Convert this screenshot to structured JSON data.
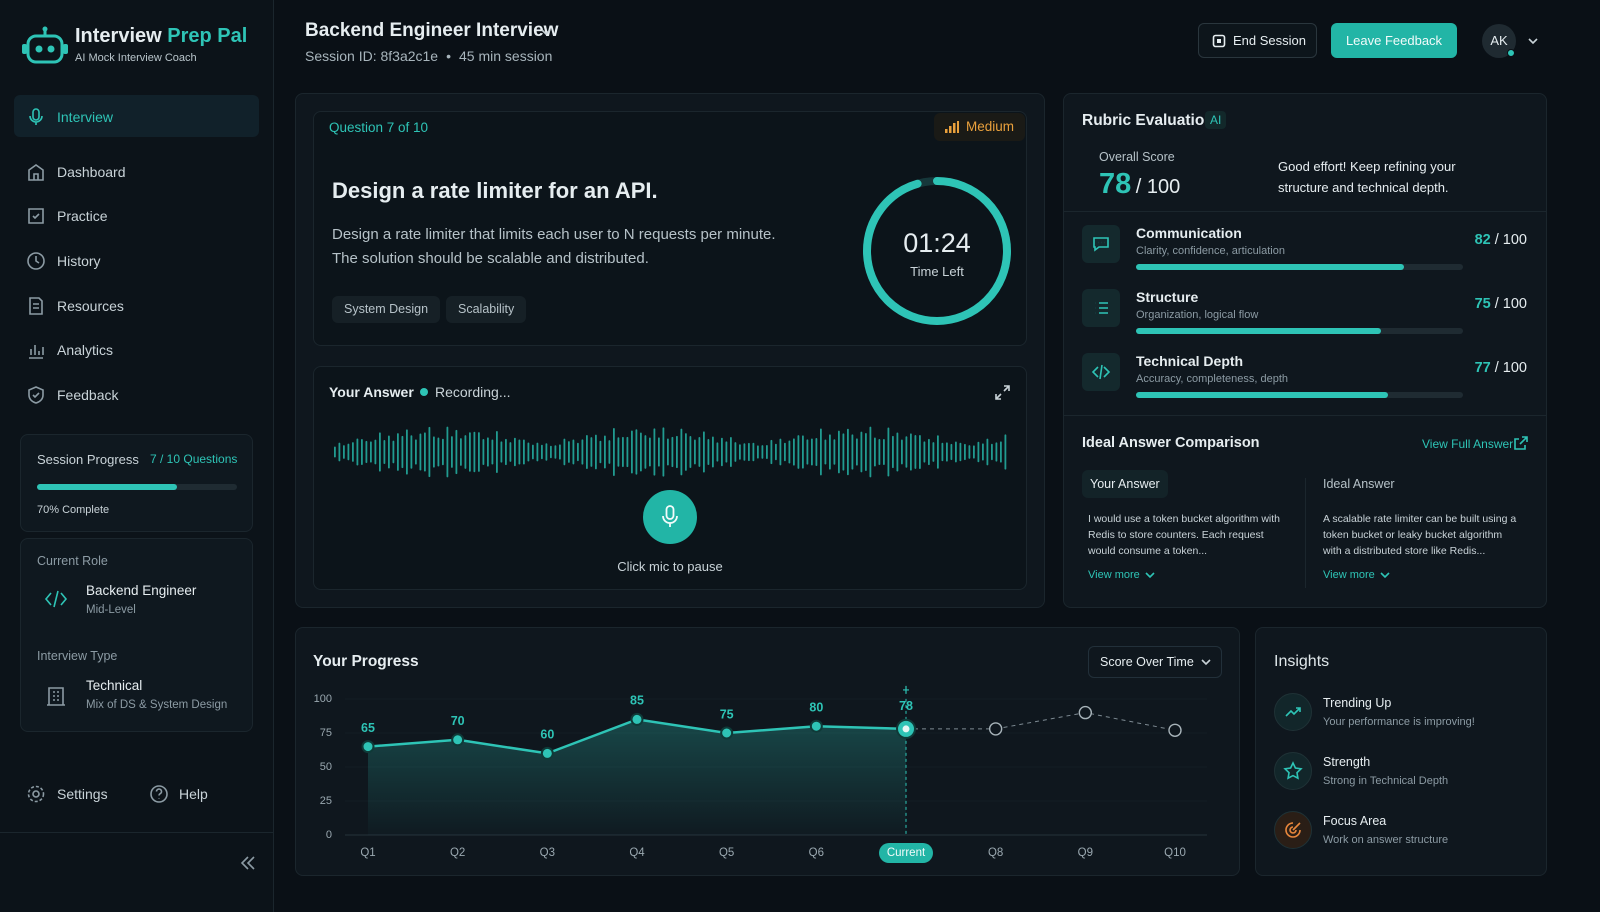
{
  "brand": {
    "name_a": "Interview",
    "name_b": "Prep Pal",
    "tagline": "AI Mock Interview Coach"
  },
  "nav": [
    "Interview",
    "Dashboard",
    "Practice",
    "History",
    "Resources",
    "Analytics",
    "Feedback"
  ],
  "session_progress": {
    "label": "Session Progress",
    "count": "7 / 10 Questions",
    "percent": 70,
    "percent_label": "70% Complete"
  },
  "role": {
    "label": "Current Role",
    "title": "Backend Engineer",
    "level": "Mid-Level"
  },
  "interview_type": {
    "label": "Interview Type",
    "title": "Technical",
    "detail": "Mix of DS & System Design"
  },
  "footer_nav": [
    "Settings",
    "Help"
  ],
  "header": {
    "title": "Backend Engineer Interview",
    "session_id": "Session ID: 8f3a2c1e",
    "duration": "45 min session",
    "end": "End Session",
    "feedback": "Leave Feedback",
    "avatar": "AK"
  },
  "question": {
    "counter": "Question 7 of 10",
    "difficulty": "Medium",
    "title": "Design a rate limiter for an API.",
    "body": [
      "Design a rate limiter that limits each user to N requests per minute.",
      "The solution should be scalable and distributed."
    ],
    "tags": [
      "System Design",
      "Scalability"
    ],
    "timer": "01:24",
    "timer_label": "Time Left"
  },
  "answer": {
    "label": "Your Answer",
    "status": "Recording...",
    "hint": "Click mic to pause"
  },
  "rubric": {
    "title": "Rubric Evaluation",
    "badge": "AI",
    "overall_label": "Overall Score",
    "overall": 78,
    "max": 100,
    "max_label": "/ 100",
    "summary": "Good effort! Keep refining your structure and technical depth.",
    "criteria": [
      {
        "name": "Communication",
        "detail": "Clarity, confidence, articulation",
        "score": 82
      },
      {
        "name": "Structure",
        "detail": "Organization, logical flow",
        "score": 75
      },
      {
        "name": "Technical Depth",
        "detail": "Accuracy, completeness, depth",
        "score": 77
      }
    ]
  },
  "comparison": {
    "title": "Ideal Answer Comparison",
    "link": "View Full Answer",
    "yours": {
      "label": "Your Answer",
      "text": "I would use a token bucket algorithm with Redis to store counters. Each request would consume a token...",
      "more": "View more"
    },
    "ideal": {
      "label": "Ideal Answer",
      "text": "A scalable rate limiter can be built using a token bucket or leaky bucket algorithm with a distributed store like Redis...",
      "more": "View more"
    }
  },
  "progress": {
    "title": "Your Progress",
    "selector": "Score Over Time",
    "chart": {
      "type": "line",
      "categories": [
        "Q1",
        "Q2",
        "Q3",
        "Q4",
        "Q5",
        "Q6",
        "Current",
        "Q8",
        "Q9",
        "Q10"
      ],
      "values": [
        65,
        70,
        60,
        85,
        75,
        80,
        78,
        null,
        null,
        null
      ],
      "projected": [
        null,
        null,
        null,
        null,
        null,
        null,
        null,
        78,
        90,
        77
      ],
      "color": "#2ec4b6",
      "ylim": [
        0,
        100
      ],
      "yticks": [
        0,
        25,
        50,
        75,
        100
      ],
      "grid": true
    }
  },
  "insights": {
    "title": "Insights",
    "items": [
      {
        "title": "Trending Up",
        "detail": "Your performance is improving!"
      },
      {
        "title": "Strength",
        "detail": "Strong in Technical Depth"
      },
      {
        "title": "Focus Area",
        "detail": "Work on answer structure"
      }
    ]
  }
}
